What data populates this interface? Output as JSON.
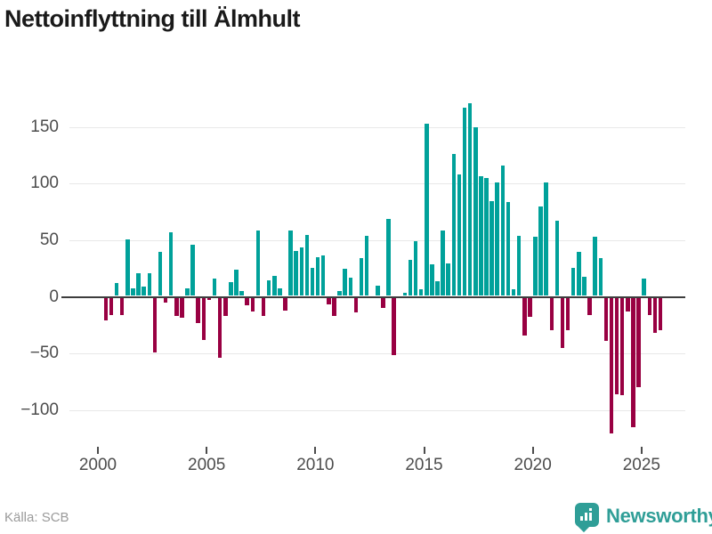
{
  "title": "Nettoinflyttning till Älmhult",
  "source_label": "Källa: SCB",
  "brand": {
    "name": "Newsworthy",
    "color": "#2f9e97"
  },
  "colors": {
    "positive": "#00a19a",
    "negative": "#990042",
    "grid": "#e8e8e8",
    "zero_axis": "#3d3d3d"
  },
  "chart_data": {
    "type": "bar",
    "title": "Nettoinflyttning till Älmhult",
    "frequency": "quarterly",
    "x_tick_years": [
      2000,
      2005,
      2010,
      2015,
      2020,
      2025
    ],
    "y_ticks": [
      150,
      100,
      50,
      0,
      -50,
      -100
    ],
    "ylim": [
      -130,
      180
    ],
    "grid": true,
    "legend": "none",
    "values": [
      [
        "2000Q2",
        -20
      ],
      [
        "2000Q3",
        -15
      ],
      [
        "2000Q4",
        11
      ],
      [
        "2001Q1",
        -15
      ],
      [
        "2001Q2",
        50
      ],
      [
        "2001Q3",
        7
      ],
      [
        "2001Q4",
        20
      ],
      [
        "2002Q1",
        8
      ],
      [
        "2002Q2",
        20
      ],
      [
        "2002Q3",
        -48
      ],
      [
        "2002Q4",
        39
      ],
      [
        "2003Q1",
        -4
      ],
      [
        "2003Q2",
        56
      ],
      [
        "2003Q3",
        -16
      ],
      [
        "2003Q4",
        -18
      ],
      [
        "2004Q1",
        7
      ],
      [
        "2004Q2",
        45
      ],
      [
        "2004Q3",
        -22
      ],
      [
        "2004Q4",
        -37
      ],
      [
        "2005Q1",
        -2
      ],
      [
        "2005Q2",
        15
      ],
      [
        "2005Q3",
        -53
      ],
      [
        "2005Q4",
        -16
      ],
      [
        "2006Q1",
        12
      ],
      [
        "2006Q2",
        23
      ],
      [
        "2006Q3",
        4
      ],
      [
        "2006Q4",
        -7
      ],
      [
        "2007Q1",
        -12
      ],
      [
        "2007Q2",
        58
      ],
      [
        "2007Q3",
        -16
      ],
      [
        "2007Q4",
        14
      ],
      [
        "2008Q1",
        18
      ],
      [
        "2008Q2",
        7
      ],
      [
        "2008Q3",
        -11
      ],
      [
        "2008Q4",
        58
      ],
      [
        "2009Q1",
        40
      ],
      [
        "2009Q2",
        43
      ],
      [
        "2009Q3",
        54
      ],
      [
        "2009Q4",
        25
      ],
      [
        "2010Q1",
        34
      ],
      [
        "2010Q2",
        36
      ],
      [
        "2010Q3",
        -6
      ],
      [
        "2010Q4",
        -16
      ],
      [
        "2011Q1",
        4
      ],
      [
        "2011Q2",
        24
      ],
      [
        "2011Q3",
        16
      ],
      [
        "2011Q4",
        -13
      ],
      [
        "2012Q1",
        33
      ],
      [
        "2012Q2",
        53
      ],
      [
        "2012Q3",
        0
      ],
      [
        "2012Q4",
        9
      ],
      [
        "2013Q1",
        -9
      ],
      [
        "2013Q2",
        68
      ],
      [
        "2013Q3",
        -51
      ],
      [
        "2013Q4",
        0
      ],
      [
        "2014Q1",
        3
      ],
      [
        "2014Q2",
        32
      ],
      [
        "2014Q3",
        48
      ],
      [
        "2014Q4",
        6
      ],
      [
        "2015Q1",
        152
      ],
      [
        "2015Q2",
        28
      ],
      [
        "2015Q3",
        13
      ],
      [
        "2015Q4",
        58
      ],
      [
        "2016Q1",
        29
      ],
      [
        "2016Q2",
        125
      ],
      [
        "2016Q3",
        107
      ],
      [
        "2016Q4",
        166
      ],
      [
        "2017Q1",
        170
      ],
      [
        "2017Q2",
        149
      ],
      [
        "2017Q3",
        106
      ],
      [
        "2017Q4",
        104
      ],
      [
        "2018Q1",
        84
      ],
      [
        "2018Q2",
        100
      ],
      [
        "2018Q3",
        115
      ],
      [
        "2018Q4",
        83
      ],
      [
        "2019Q1",
        6
      ],
      [
        "2019Q2",
        53
      ],
      [
        "2019Q3",
        -33
      ],
      [
        "2019Q4",
        -17
      ],
      [
        "2020Q1",
        52
      ],
      [
        "2020Q2",
        79
      ],
      [
        "2020Q3",
        100
      ],
      [
        "2020Q4",
        -29
      ],
      [
        "2021Q1",
        66
      ],
      [
        "2021Q2",
        -44
      ],
      [
        "2021Q3",
        -29
      ],
      [
        "2021Q4",
        25
      ],
      [
        "2022Q1",
        39
      ],
      [
        "2022Q2",
        17
      ],
      [
        "2022Q3",
        -15
      ],
      [
        "2022Q4",
        52
      ],
      [
        "2023Q1",
        33
      ],
      [
        "2023Q2",
        -38
      ],
      [
        "2023Q3",
        -120
      ],
      [
        "2023Q4",
        -85
      ],
      [
        "2024Q1",
        -86
      ],
      [
        "2024Q2",
        -12
      ],
      [
        "2024Q3",
        -114
      ],
      [
        "2024Q4",
        -79
      ],
      [
        "2025Q1",
        15
      ],
      [
        "2025Q2",
        -15
      ],
      [
        "2025Q3",
        -31
      ],
      [
        "2025Q4",
        -29
      ]
    ]
  }
}
